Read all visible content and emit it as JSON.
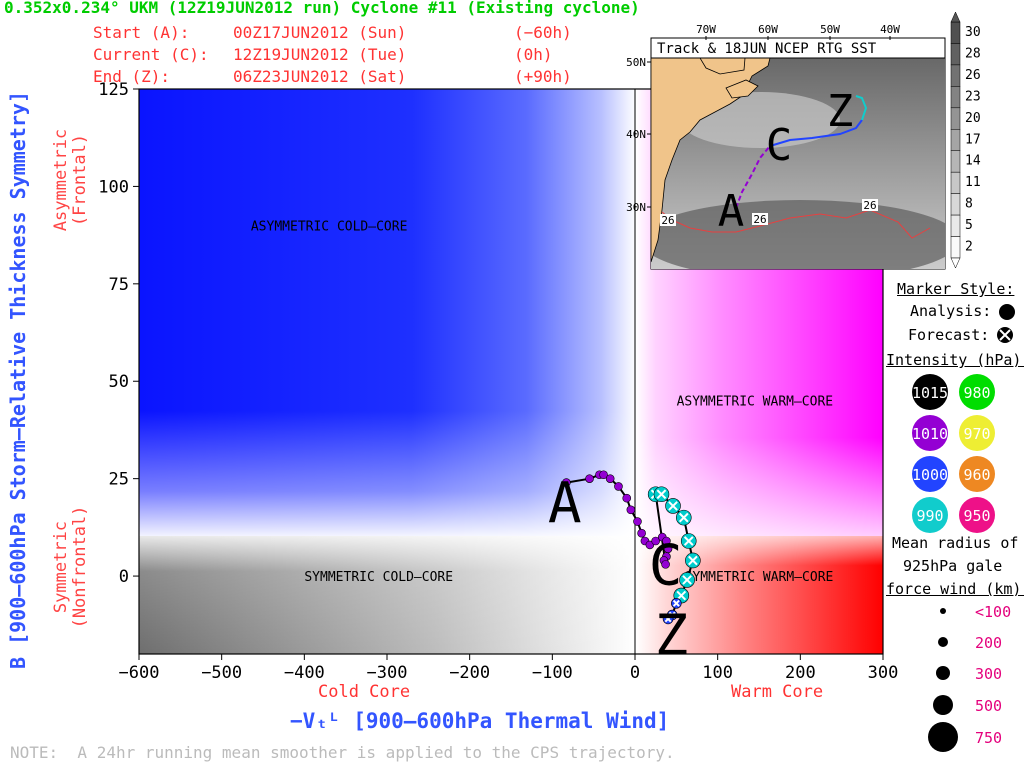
{
  "header": {
    "title": "0.352x0.234° UKM (12Z19JUN2012 run) Cyclone #11 (Existing cyclone)",
    "rows": [
      {
        "label": "Start (A):",
        "time": "00Z17JUN2012 (Sun)",
        "offset": "(−60h)"
      },
      {
        "label": "Current (C):",
        "time": "12Z19JUN2012 (Tue)",
        "offset": "(0h)"
      },
      {
        "label": "End (Z):",
        "time": "06Z23JUN2012 (Sat)",
        "offset": "(+90h)"
      }
    ]
  },
  "axes": {
    "ylabel": "B [900–600hPa Storm–Relative Thickness Symmetry]",
    "y_upper_desc": [
      "Asymmetric",
      "(Frontal)"
    ],
    "y_lower_desc": [
      "Symmetric",
      "(Nonfrontal)"
    ],
    "xlabel": "−Vₜᴸ [900–600hPa Thermal Wind]",
    "x_left_desc": "Cold Core",
    "x_right_desc": "Warm Core"
  },
  "chart_data": {
    "type": "scatter",
    "xlim": [
      -600,
      300
    ],
    "ylim": [
      -20,
      125
    ],
    "xticks": [
      -600,
      -500,
      -400,
      -300,
      -200,
      -100,
      0,
      100,
      200,
      300
    ],
    "yticks": [
      0,
      25,
      50,
      75,
      100,
      125
    ],
    "regions": [
      {
        "label": "ASYMMETRIC COLD–CORE",
        "x": -370,
        "y": 90
      },
      {
        "label": "ASYMMETRIC WARM–CORE",
        "x": 145,
        "y": 45
      },
      {
        "label": "SYMMETRIC COLD–CORE",
        "x": -310,
        "y": 0
      },
      {
        "label": "SYMMETRIC WARM–CORE",
        "x": 150,
        "y": 0
      }
    ],
    "point_labels": [
      {
        "text": "A",
        "x": -85,
        "y": 19
      },
      {
        "text": "C",
        "x": 37,
        "y": 3
      },
      {
        "text": "Z",
        "x": 44,
        "y": -15
      }
    ],
    "series": [
      {
        "name": "Analysis",
        "marker": "filled-circle",
        "intensity_color": "#9400d3",
        "points": [
          [
            -83,
            24
          ],
          [
            -55,
            25
          ],
          [
            -43,
            26
          ],
          [
            -38,
            26
          ],
          [
            -30,
            25
          ],
          [
            -20,
            23
          ],
          [
            -10,
            20
          ],
          [
            -5,
            17
          ],
          [
            3,
            14
          ],
          [
            8,
            11
          ],
          [
            12,
            9
          ],
          [
            18,
            8
          ],
          [
            25,
            9
          ],
          [
            33,
            10
          ],
          [
            38,
            9
          ],
          [
            40,
            7
          ],
          [
            38,
            5
          ],
          [
            35,
            4
          ],
          [
            37,
            3
          ]
        ]
      },
      {
        "name": "Forecast",
        "marker": "crossed-circle",
        "intensity_color": "#00cccc",
        "points": [
          [
            25,
            21
          ],
          [
            32,
            21
          ],
          [
            46,
            18
          ],
          [
            59,
            15
          ],
          [
            65,
            9
          ],
          [
            70,
            4
          ],
          [
            63,
            -1
          ],
          [
            56,
            -5
          ],
          [
            50,
            -7
          ],
          [
            45,
            -10
          ],
          [
            40,
            -11
          ]
        ]
      }
    ],
    "inset": {
      "title": "Track & 18JUN NCEP RTG SST",
      "lon_ticks": [
        "70W",
        "60W",
        "50W",
        "40W"
      ],
      "lat_ticks": [
        "50N",
        "40N",
        "30N"
      ],
      "contour_label": "26",
      "sst_scale": [
        30,
        28,
        26,
        23,
        20,
        17,
        14,
        11,
        8,
        5,
        2
      ],
      "labels": [
        "A",
        "C",
        "Z"
      ]
    }
  },
  "legend": {
    "marker_title": "Marker Style:",
    "analysis_label": "Analysis:",
    "forecast_label": "Forecast:",
    "intensity_title": "Intensity (hPa):",
    "intensity": [
      {
        "value": "1015",
        "color": "#000000"
      },
      {
        "value": "980",
        "color": "#00dd00"
      },
      {
        "value": "1010",
        "color": "#9400d3"
      },
      {
        "value": "970",
        "color": "#eeee33"
      },
      {
        "value": "1000",
        "color": "#2244ff"
      },
      {
        "value": "960",
        "color": "#ee8822"
      },
      {
        "value": "990",
        "color": "#11cccc"
      },
      {
        "value": "950",
        "color": "#ee1188"
      }
    ],
    "radius_title": [
      "Mean radius of",
      "925hPa gale",
      "force wind (km):"
    ],
    "radius_items": [
      "<100",
      "200",
      "300",
      "500",
      "750"
    ]
  },
  "note": "NOTE:  A 24hr running mean smoother is applied to the CPS trajectory."
}
